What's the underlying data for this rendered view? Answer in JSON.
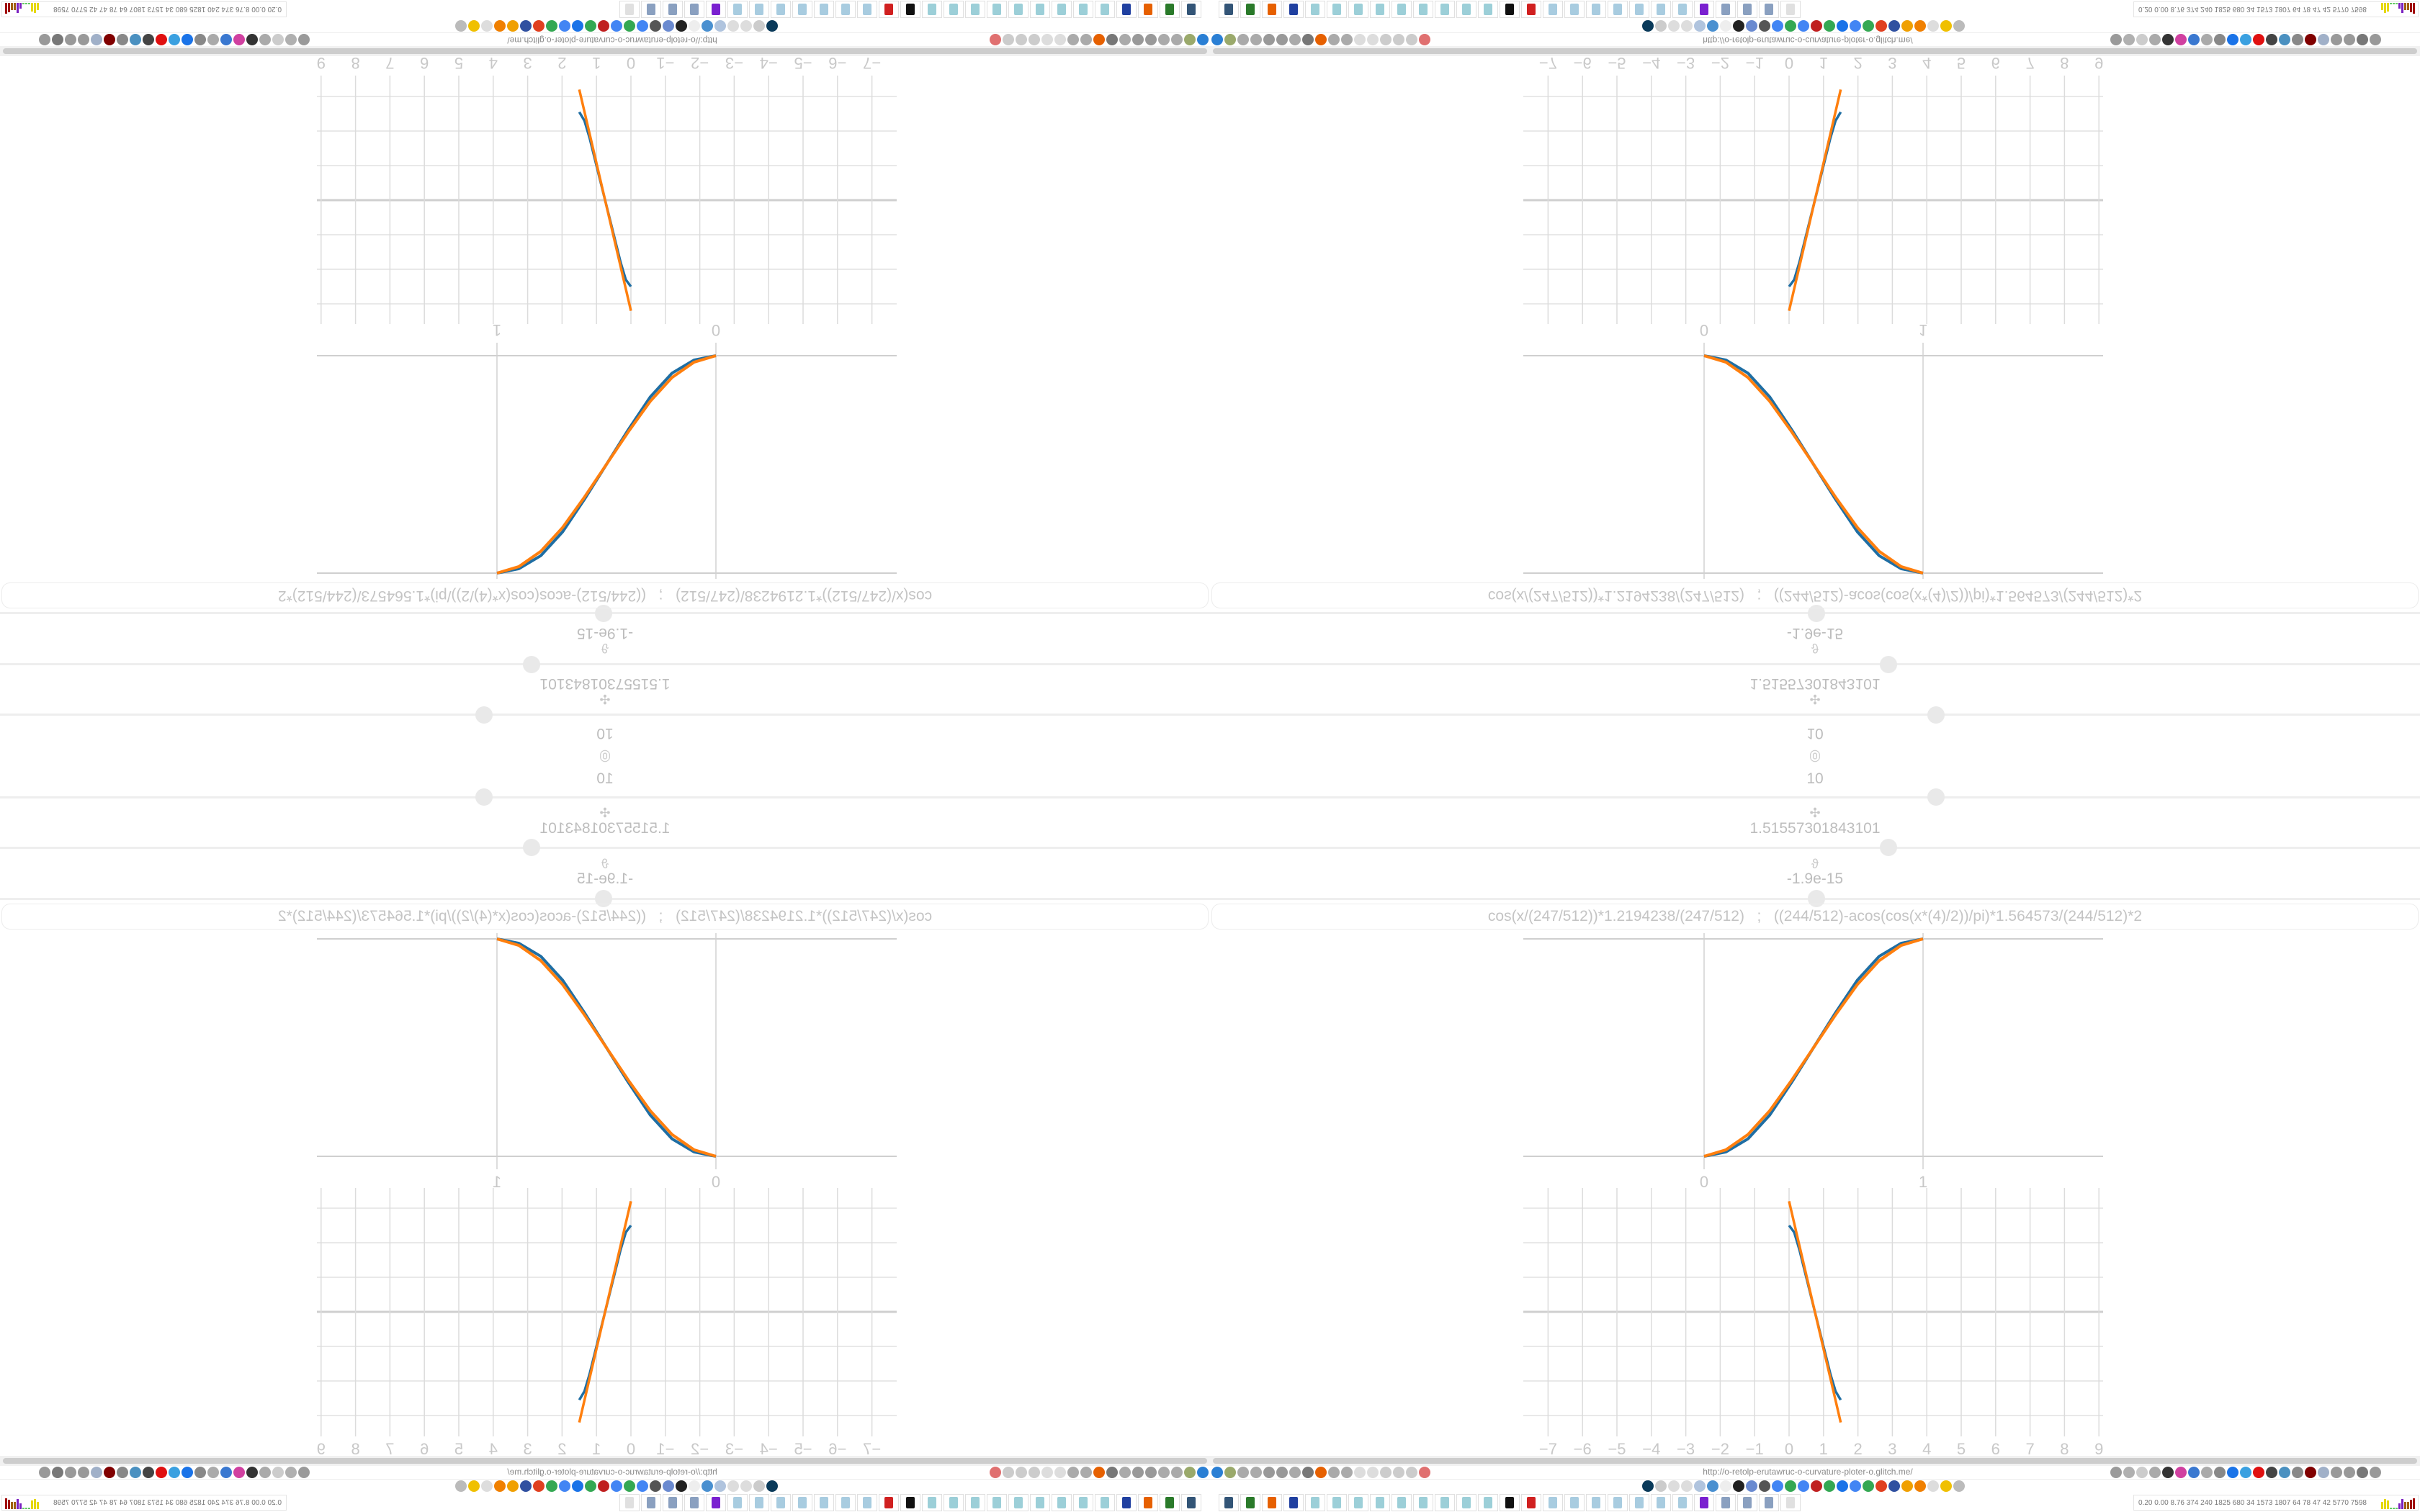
{
  "browser": {
    "url": "http://o-retolp-erutawruc-o-curvature-ploter-o.glitch.me/",
    "toolbar_left_icons": [
      {
        "name": "filter-icon",
        "color": "#2a7fd4"
      },
      {
        "name": "extension-icon",
        "color": "#9aa96b"
      },
      {
        "name": "globe-icon",
        "color": "#aaaaaa"
      },
      {
        "name": "globe-icon",
        "color": "#aaaaaa"
      },
      {
        "name": "refresh-icon",
        "color": "#999999"
      },
      {
        "name": "refresh-icon",
        "color": "#999999"
      },
      {
        "name": "globe-icon",
        "color": "#aaaaaa"
      },
      {
        "name": "pen-icon",
        "color": "#777777"
      },
      {
        "name": "firefox-icon",
        "color": "#e66000"
      },
      {
        "name": "gear-icon",
        "color": "#aaaaaa"
      },
      {
        "name": "globe-icon",
        "color": "#aaaaaa"
      },
      {
        "name": "dot-icon",
        "color": "#dddddd"
      },
      {
        "name": "dot-icon",
        "color": "#dddddd"
      },
      {
        "name": "folder-icon",
        "color": "#cccccc"
      },
      {
        "name": "back-icon",
        "color": "#cccccc"
      },
      {
        "name": "shield-icon",
        "color": "#cccccc"
      },
      {
        "name": "no-script-icon",
        "color": "#e07070"
      }
    ],
    "toolbar_right_icons": [
      {
        "name": "translate-icon",
        "color": "#9a9a9a"
      },
      {
        "name": "star-icon",
        "color": "#b0b0b0"
      },
      {
        "name": "forward-icon",
        "color": "#cccccc"
      },
      {
        "name": "reload-icon",
        "color": "#aaaaaa"
      },
      {
        "name": "download-icon",
        "color": "#333333"
      },
      {
        "name": "color-picker-icon",
        "color": "#d040a0"
      },
      {
        "name": "translate-icon",
        "color": "#3a78d0"
      },
      {
        "name": "mouse-icon",
        "color": "#aaaaaa"
      },
      {
        "name": "gear-icon",
        "color": "#888888"
      },
      {
        "name": "plus-icon",
        "color": "#1a73e8"
      },
      {
        "name": "shield-icon",
        "color": "#3aa0e0"
      },
      {
        "name": "record-icon",
        "color": "#e01010"
      },
      {
        "name": "trash-icon",
        "color": "#444444"
      },
      {
        "name": "globe-icon",
        "color": "#4a90c0"
      },
      {
        "name": "archive-icon",
        "color": "#888888"
      },
      {
        "name": "ublock-icon",
        "color": "#800000"
      },
      {
        "name": "shield-icon",
        "color": "#a0b0c8"
      },
      {
        "name": "globe-icon",
        "color": "#999999"
      },
      {
        "name": "puzzle-icon",
        "color": "#999999"
      },
      {
        "name": "wrench-icon",
        "color": "#777777"
      },
      {
        "name": "gear-icon",
        "color": "#999999"
      }
    ],
    "bookmark_icons": [
      {
        "name": "bookmark-icon",
        "color": "#0a3a5a"
      },
      {
        "name": "bookmark-icon",
        "color": "#cccccc"
      },
      {
        "name": "cc-icon",
        "color": "#dddddd"
      },
      {
        "name": "bookmark-icon",
        "color": "#dddddd"
      },
      {
        "name": "bookmark-icon",
        "color": "#b0c4de"
      },
      {
        "name": "bookmark-icon",
        "color": "#4a90d0"
      },
      {
        "name": "wikipedia-icon",
        "color": "#eeeeee"
      },
      {
        "name": "bookmark-icon",
        "color": "#222222"
      },
      {
        "name": "bookmark-icon",
        "color": "#6a8ad0"
      },
      {
        "name": "bookmark-icon",
        "color": "#555555"
      },
      {
        "name": "bookmark-icon",
        "color": "#4285f4"
      },
      {
        "name": "google-icon",
        "color": "#34a853"
      },
      {
        "name": "google-icon",
        "color": "#4285f4"
      },
      {
        "name": "bookmark-icon",
        "color": "#c02020"
      },
      {
        "name": "google-icon",
        "color": "#34a853"
      },
      {
        "name": "bookmark-icon",
        "color": "#1a73e8"
      },
      {
        "name": "google-icon",
        "color": "#4285f4"
      },
      {
        "name": "google-icon",
        "color": "#34a853"
      },
      {
        "name": "bookmark-icon",
        "color": "#e04020"
      },
      {
        "name": "bookmark-icon",
        "color": "#3050a0"
      },
      {
        "name": "bookmark-icon",
        "color": "#f0a000"
      },
      {
        "name": "bookmark-icon",
        "color": "#f08000"
      },
      {
        "name": "cc-icon",
        "color": "#dddddd"
      },
      {
        "name": "bookmark-icon",
        "color": "#f0c000"
      },
      {
        "name": "hourglass-icon",
        "color": "#bbbbbb"
      }
    ],
    "taskbar_apps": [
      {
        "name": "monitor-app-icon",
        "color": "#335577"
      },
      {
        "name": "terminal-app-icon",
        "color": "#2a7a2a"
      },
      {
        "name": "firefox-app-icon",
        "color": "#e66000"
      },
      {
        "name": "save-app-icon",
        "color": "#2040a0"
      },
      {
        "name": "document-app-icon",
        "color": "#9ccfd8"
      },
      {
        "name": "document-app-icon",
        "color": "#9ccfd8"
      },
      {
        "name": "document-app-icon",
        "color": "#9ccfd8"
      },
      {
        "name": "document-app-icon",
        "color": "#9ccfd8"
      },
      {
        "name": "document-app-icon",
        "color": "#9ccfd8"
      },
      {
        "name": "document-app-icon",
        "color": "#9ccfd8"
      },
      {
        "name": "document-app-icon",
        "color": "#9ccfd8"
      },
      {
        "name": "document-app-icon",
        "color": "#9ccfd8"
      },
      {
        "name": "document-app-icon",
        "color": "#9ccfd8"
      },
      {
        "name": "inkscape-app-icon",
        "color": "#111111"
      },
      {
        "name": "app-icon",
        "color": "#d02020"
      },
      {
        "name": "calculator-app-icon",
        "color": "#a8cce0"
      },
      {
        "name": "calculator-app-icon",
        "color": "#a8cce0"
      },
      {
        "name": "calculator-app-icon",
        "color": "#a8cce0"
      },
      {
        "name": "calculator-app-icon",
        "color": "#a8cce0"
      },
      {
        "name": "calculator-app-icon",
        "color": "#a8cce0"
      },
      {
        "name": "calculator-app-icon",
        "color": "#a8cce0"
      },
      {
        "name": "calculator-app-icon",
        "color": "#a8cce0"
      },
      {
        "name": "chat-app-icon",
        "color": "#7a20d0"
      },
      {
        "name": "files-app-icon",
        "color": "#8aa0c0"
      },
      {
        "name": "files-app-icon",
        "color": "#8aa0c0"
      },
      {
        "name": "files-app-icon",
        "color": "#8aa0c0"
      },
      {
        "name": "app-icon",
        "color": "#e0e0e0"
      }
    ],
    "tray_stats": "0.20 0.00 8.76 374 240 1825 680 34 1573 1807 64 78 47 42 5770 7598"
  },
  "plotter": {
    "sliders": [
      {
        "icon": "target-icon",
        "glyph": "◎",
        "value": "10",
        "position": 0.6
      },
      {
        "icon": "pivot-icon",
        "glyph": "✣",
        "value": "1.51557301843101",
        "position": 0.561
      },
      {
        "icon": "theta-icon",
        "glyph": "ϑ",
        "value": "-1.9e-15",
        "position": 0.501
      }
    ],
    "formula": "cos(x/(247/512))*1.2194238/(247/512)   ;   ((244/512)-acos(cos(x*(4)/2))/pi)*1.564573/(244/512)*2"
  },
  "chart_data": [
    {
      "type": "line",
      "xlim": [
        0,
        1
      ],
      "ylim": [
        0,
        1
      ],
      "xticks": [
        "0",
        "1"
      ],
      "grid": false,
      "colors": [
        "#1f6ea3",
        "#ff7f0e"
      ],
      "x": [
        0,
        0.1,
        0.2,
        0.3,
        0.4,
        0.5,
        0.6,
        0.7,
        0.8,
        0.9,
        1.0
      ],
      "series": [
        {
          "values": [
            0,
            0.02,
            0.08,
            0.19,
            0.34,
            0.5,
            0.66,
            0.81,
            0.92,
            0.98,
            1.0
          ]
        },
        {
          "values": [
            0,
            0.03,
            0.1,
            0.21,
            0.35,
            0.5,
            0.65,
            0.79,
            0.9,
            0.97,
            1.0
          ]
        }
      ]
    },
    {
      "type": "line",
      "xlim": [
        -7.6,
        9.2
      ],
      "ylim": [
        -3.6,
        3.6
      ],
      "xticks": [
        "−7",
        "−6",
        "−5",
        "−4",
        "−3",
        "−2",
        "−1",
        "0",
        "1",
        "2",
        "3",
        "4",
        "5",
        "6",
        "7",
        "8",
        "9"
      ],
      "grid": true,
      "colors": [
        "#1f6ea3",
        "#ff7f0e"
      ],
      "x": [
        0,
        0.15,
        0.3,
        0.45,
        0.6,
        0.75,
        0.9,
        1.05,
        1.2,
        1.35,
        1.5
      ],
      "series": [
        {
          "values": [
            2.5,
            2.3,
            1.8,
            1.2,
            0.6,
            0,
            -0.6,
            -1.2,
            -1.8,
            -2.3,
            -2.55
          ]
        },
        {
          "values": [
            3.2,
            2.56,
            1.92,
            1.28,
            0.64,
            0,
            -0.64,
            -1.28,
            -1.92,
            -2.56,
            -3.2
          ]
        }
      ]
    }
  ]
}
